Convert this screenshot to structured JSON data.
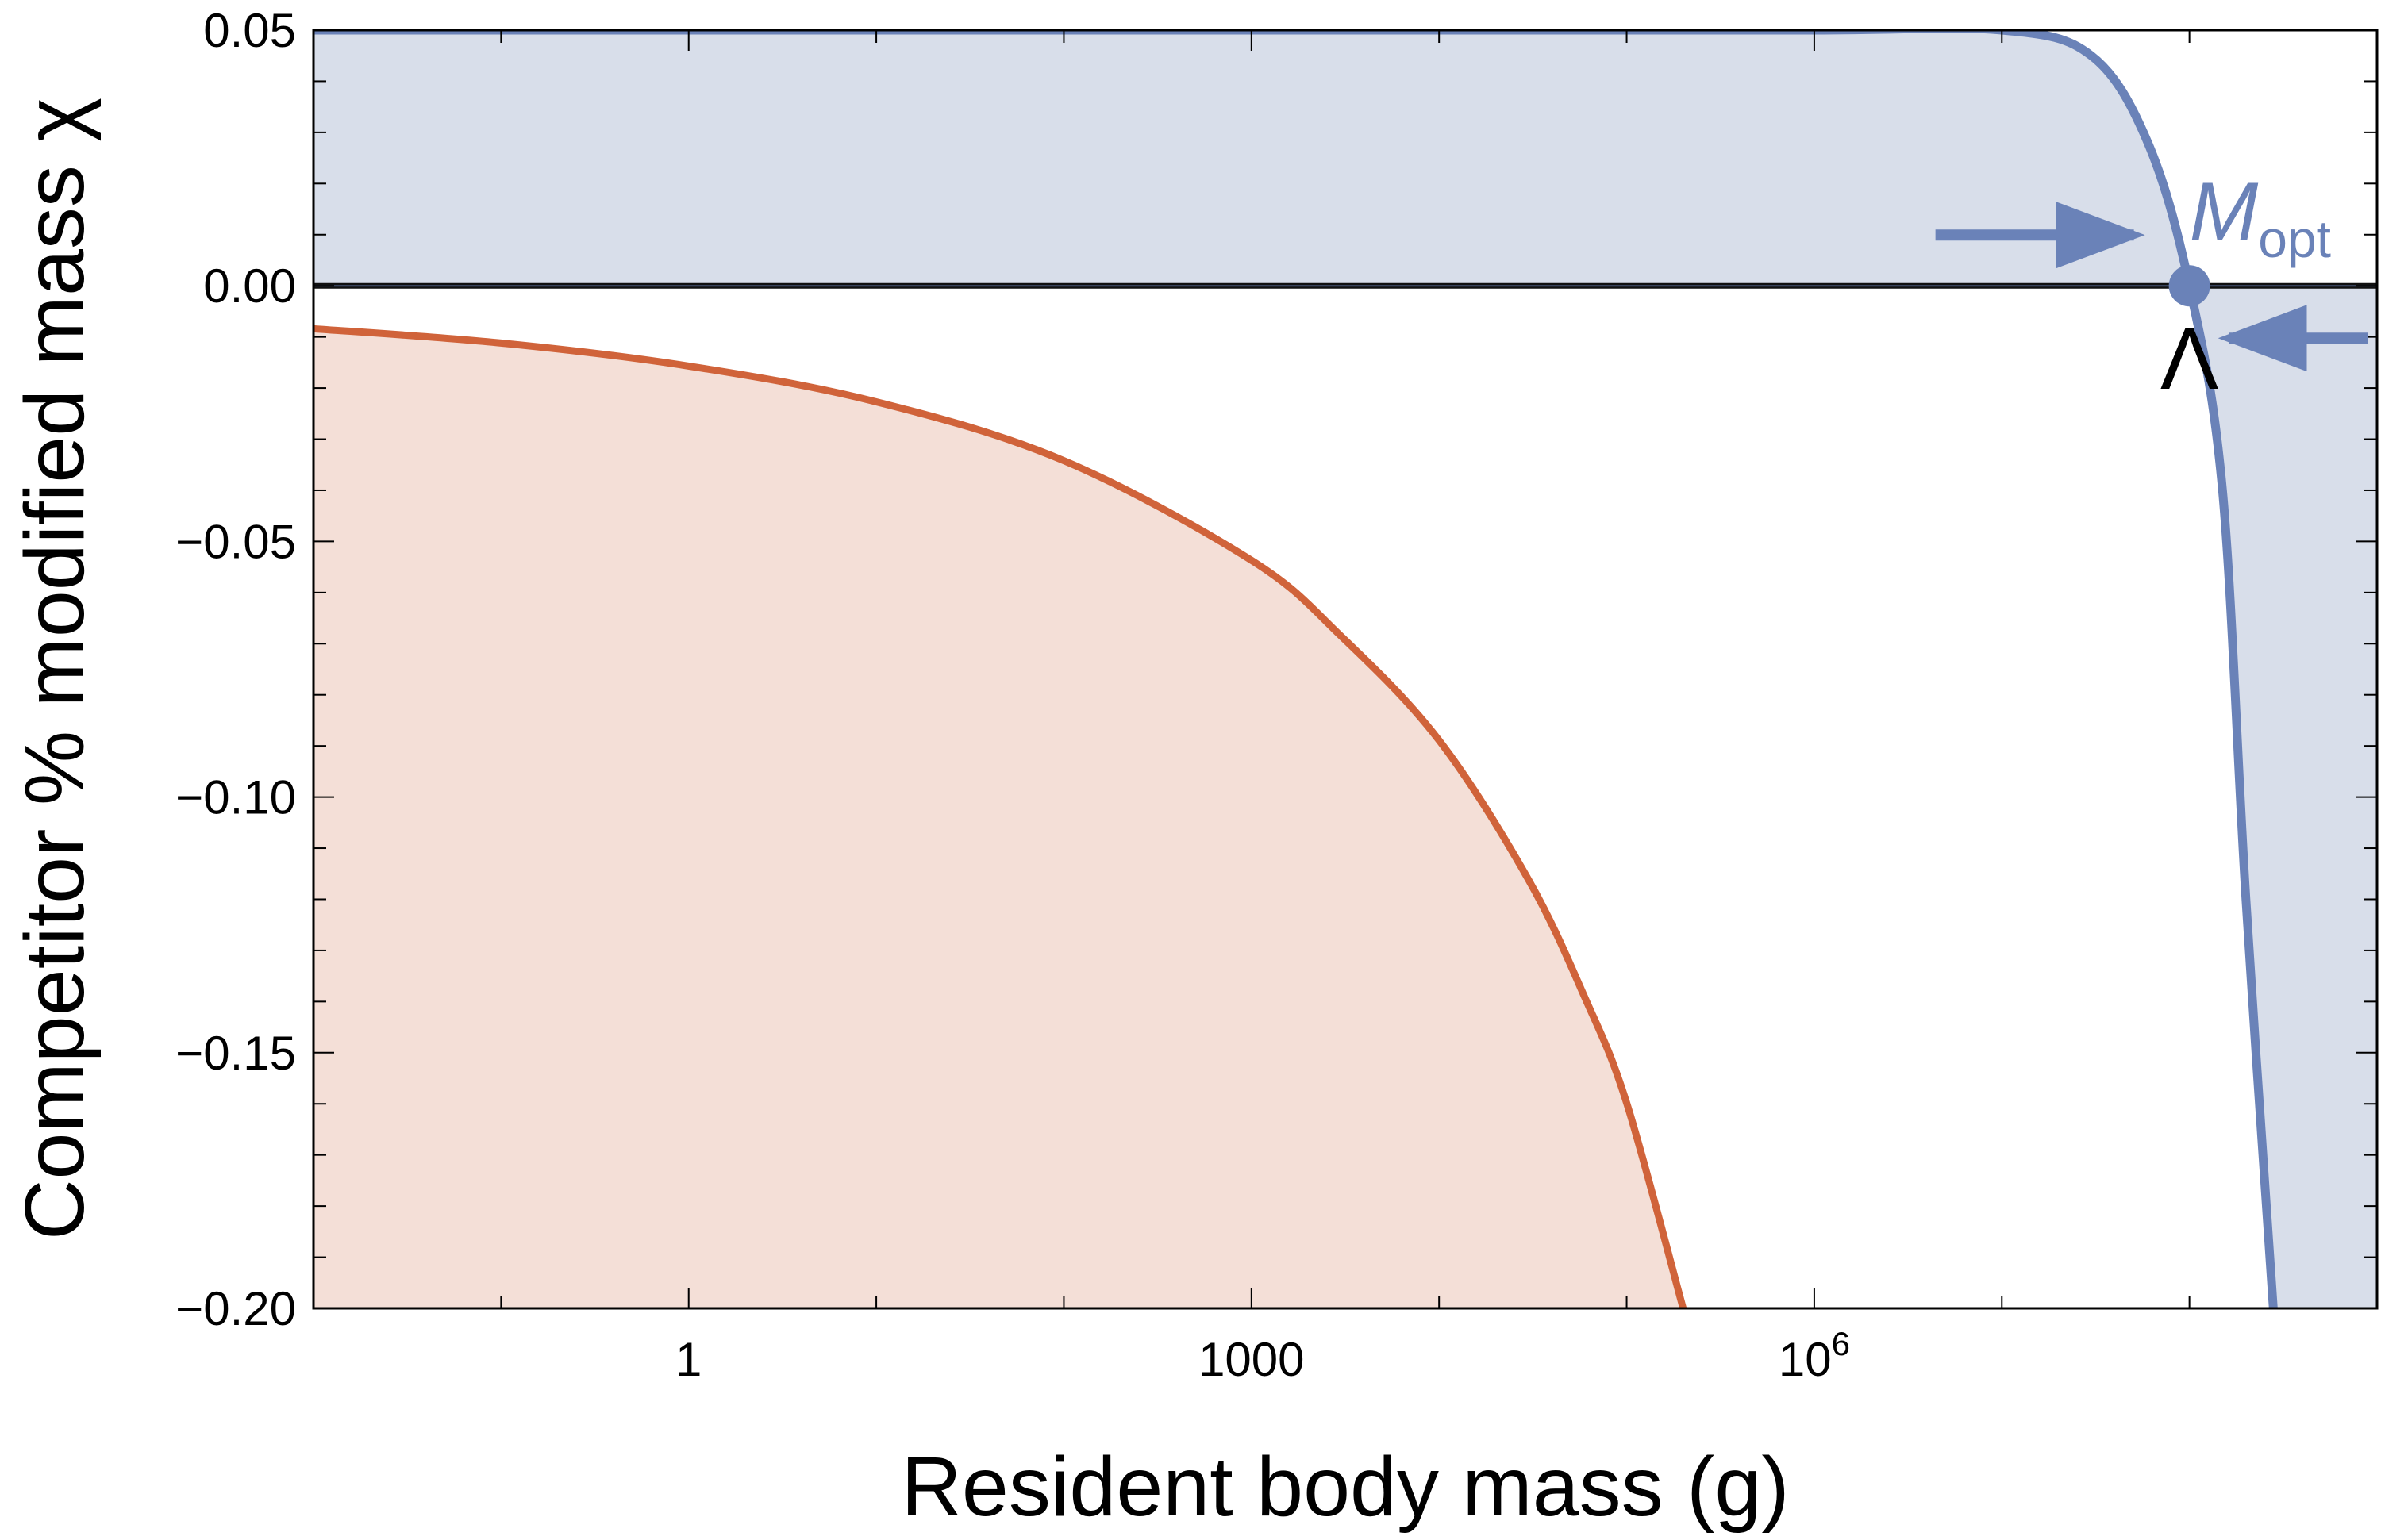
{
  "chart_data": {
    "type": "area",
    "xlabel": "Resident body mass (g)",
    "ylabel": "Competitor % modified mass χ",
    "x_scale": "log",
    "xlim": [
      0.01,
      1000000000
    ],
    "ylim": [
      -0.2,
      0.05
    ],
    "x_ticks": [
      {
        "value": 1,
        "label": "1"
      },
      {
        "value": 1000,
        "label": "1000"
      },
      {
        "value": 1000000,
        "label": "10",
        "sup": "6"
      }
    ],
    "y_ticks": [
      {
        "value": 0.05,
        "label": "0.05"
      },
      {
        "value": 0.0,
        "label": "0.00"
      },
      {
        "value": -0.05,
        "label": "−0.05"
      },
      {
        "value": -0.1,
        "label": "−0.10"
      },
      {
        "value": -0.15,
        "label": "−0.15"
      },
      {
        "value": -0.2,
        "label": "−0.20"
      }
    ],
    "grid": false,
    "series": [
      {
        "color": "#6a82b8",
        "fill": "#d8deea",
        "x": [
          0.01,
          1,
          100,
          10000,
          1000000,
          10000000,
          30000000,
          60000000,
          100000000,
          150000000,
          200000000,
          280000000
        ],
        "y": [
          0.05,
          0.05,
          0.05,
          0.05,
          0.05,
          0.05,
          0.045,
          0.028,
          0.0,
          -0.04,
          -0.12,
          -0.2
        ]
      },
      {
        "color": "#d0633a",
        "fill": "#f4dfd7",
        "x": [
          0.01,
          0.1,
          1,
          10,
          100,
          1000,
          3000,
          10000,
          30000,
          60000,
          100000,
          200000
        ],
        "y": [
          -0.0084,
          -0.0112,
          -0.0157,
          -0.0227,
          -0.0342,
          -0.0537,
          -0.0685,
          -0.0889,
          -0.1162,
          -0.1393,
          -0.1598,
          -0.2
        ]
      }
    ],
    "annotations": {
      "mopt_label": "M",
      "mopt_sub": "opt",
      "lambda_label": "Λ",
      "mopt_x": 100000000
    }
  }
}
